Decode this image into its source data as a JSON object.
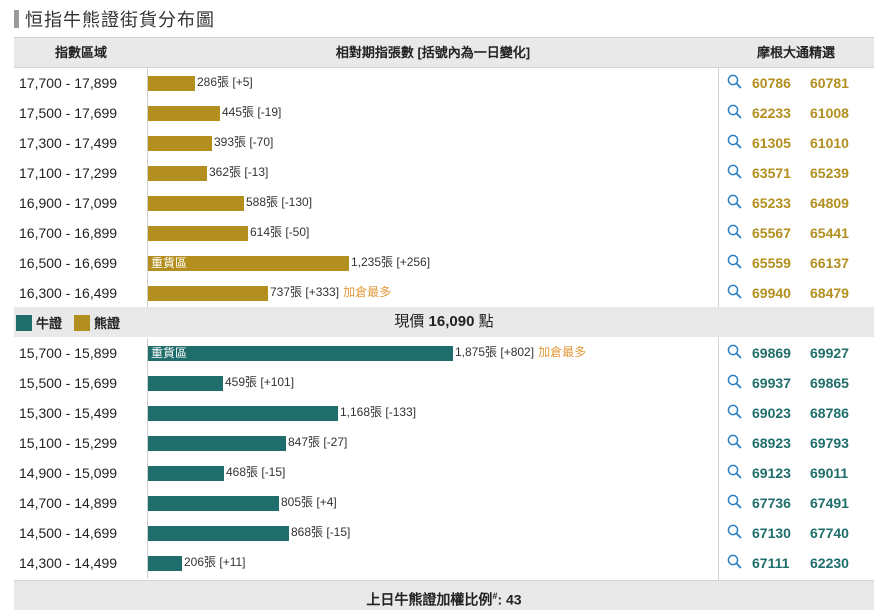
{
  "title": "恒指牛熊證街貨分布圖",
  "header": {
    "col_range": "指數區域",
    "col_change": "相對期指張數 [括號內為一日變化]",
    "col_picks": "摩根大通精選"
  },
  "colors": {
    "bear": "#b38f1f",
    "bull": "#1f6e6b"
  },
  "legend": {
    "bull": "牛證",
    "bear": "熊證"
  },
  "price": {
    "prefix": "現價",
    "value": "16,090",
    "unit": "點"
  },
  "footer": {
    "label": "上日牛熊證加權比例",
    "mark": "#",
    "value": ": 43"
  },
  "bear_rows": [
    {
      "range": "17,700 - 17,899",
      "qty": 286,
      "label": "286張 [+5]",
      "tag": "",
      "most": "",
      "picks": [
        "60786",
        "60781"
      ]
    },
    {
      "range": "17,500 - 17,699",
      "qty": 445,
      "label": "445張 [-19]",
      "tag": "",
      "most": "",
      "picks": [
        "62233",
        "61008"
      ]
    },
    {
      "range": "17,300 - 17,499",
      "qty": 393,
      "label": "393張 [-70]",
      "tag": "",
      "most": "",
      "picks": [
        "61305",
        "61010"
      ]
    },
    {
      "range": "17,100 - 17,299",
      "qty": 362,
      "label": "362張 [-13]",
      "tag": "",
      "most": "",
      "picks": [
        "63571",
        "65239"
      ]
    },
    {
      "range": "16,900 - 17,099",
      "qty": 588,
      "label": "588張 [-130]",
      "tag": "",
      "most": "",
      "picks": [
        "65233",
        "64809"
      ]
    },
    {
      "range": "16,700 - 16,899",
      "qty": 614,
      "label": "614張 [-50]",
      "tag": "",
      "most": "",
      "picks": [
        "65567",
        "65441"
      ]
    },
    {
      "range": "16,500 - 16,699",
      "qty": 1235,
      "label": "1,235張 [+256]",
      "tag": "重貨區",
      "most": "",
      "picks": [
        "65559",
        "66137"
      ]
    },
    {
      "range": "16,300 - 16,499",
      "qty": 737,
      "label": "737張 [+333]",
      "tag": "",
      "most": "加倉最多",
      "picks": [
        "69940",
        "68479"
      ]
    }
  ],
  "bull_rows": [
    {
      "range": "15,700 - 15,899",
      "qty": 1875,
      "label": "1,875張 [+802]",
      "tag": "重貨區",
      "most": "加倉最多",
      "picks": [
        "69869",
        "69927"
      ]
    },
    {
      "range": "15,500 - 15,699",
      "qty": 459,
      "label": "459張 [+101]",
      "tag": "",
      "most": "",
      "picks": [
        "69937",
        "69865"
      ]
    },
    {
      "range": "15,300 - 15,499",
      "qty": 1168,
      "label": "1,168張 [-133]",
      "tag": "",
      "most": "",
      "picks": [
        "69023",
        "68786"
      ]
    },
    {
      "range": "15,100 - 15,299",
      "qty": 847,
      "label": "847張 [-27]",
      "tag": "",
      "most": "",
      "picks": [
        "68923",
        "69793"
      ]
    },
    {
      "range": "14,900 - 15,099",
      "qty": 468,
      "label": "468張 [-15]",
      "tag": "",
      "most": "",
      "picks": [
        "69123",
        "69011"
      ]
    },
    {
      "range": "14,700 - 14,899",
      "qty": 805,
      "label": "805張 [+4]",
      "tag": "",
      "most": "",
      "picks": [
        "67736",
        "67491"
      ]
    },
    {
      "range": "14,500 - 14,699",
      "qty": 868,
      "label": "868張 [-15]",
      "tag": "",
      "most": "",
      "picks": [
        "67130",
        "67740"
      ]
    },
    {
      "range": "14,300 - 14,499",
      "qty": 206,
      "label": "206張 [+11]",
      "tag": "",
      "most": "",
      "picks": [
        "67111",
        "62230"
      ]
    }
  ]
}
